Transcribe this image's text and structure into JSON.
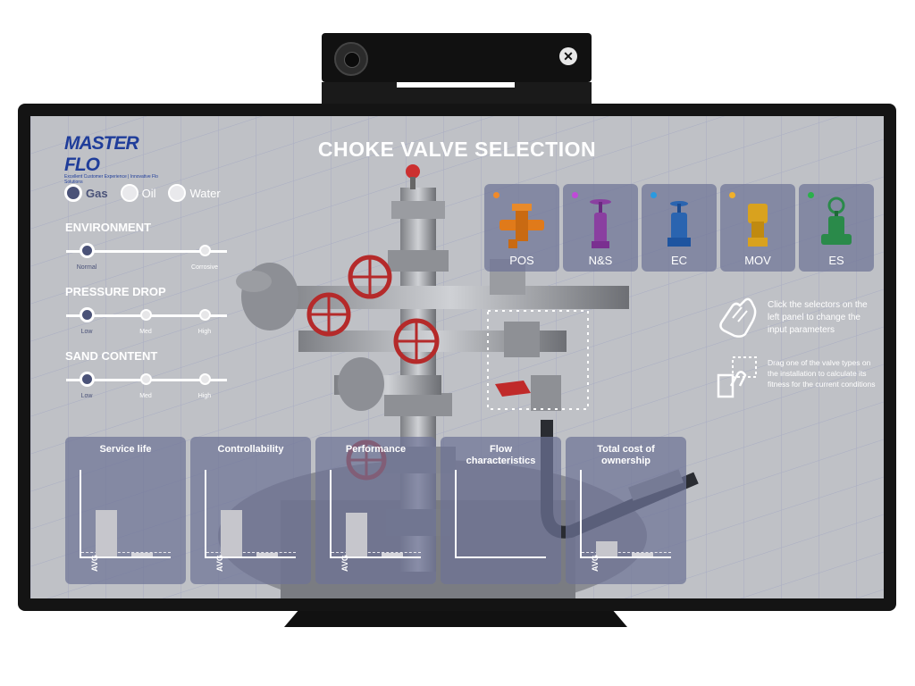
{
  "app": {
    "title": "CHOKE VALVE SELECTION",
    "logo_name": "MASTER FLO",
    "logo_tagline": "Excellent Customer Experience | Innovative Flo Solutions"
  },
  "fluid": {
    "options": [
      {
        "label": "Gas",
        "selected": true
      },
      {
        "label": "Oil",
        "selected": false
      },
      {
        "label": "Water",
        "selected": false
      }
    ]
  },
  "environment": {
    "label": "ENVIRONMENT",
    "ticks": [
      "Normal",
      "Corrosive"
    ],
    "selected": "Normal"
  },
  "pressure_drop": {
    "label": "PRESSURE DROP",
    "ticks": [
      "Low",
      "Med",
      "High"
    ],
    "selected": "Low"
  },
  "sand_content": {
    "label": "SAND CONTENT",
    "ticks": [
      "Low",
      "Med",
      "High"
    ],
    "selected": "Low"
  },
  "valves": [
    {
      "label": "POS",
      "color": "#e07a1a",
      "indicator": "#f08a2a"
    },
    {
      "label": "N&S",
      "color": "#8a3fa0",
      "indicator": "#c04ad8"
    },
    {
      "label": "EC",
      "color": "#2a64b0",
      "indicator": "#2a9ae0"
    },
    {
      "label": "MOV",
      "color": "#d9a21e",
      "indicator": "#f0b02a"
    },
    {
      "label": "ES",
      "color": "#2a8a4a",
      "indicator": "#2ab04a"
    }
  ],
  "help": {
    "click_text": "Click the selectors on the left panel to change the input parameters",
    "drag_text": "Drag one of the valve types on the installation to calculate its fitness for the current conditions"
  },
  "metrics": [
    {
      "title": "Service life",
      "avg_label": "AVG",
      "avg_fraction": 0.55
    },
    {
      "title": "Controllability",
      "avg_label": "AVG",
      "avg_fraction": 0.55
    },
    {
      "title": "Performance",
      "avg_label": "AVG",
      "avg_fraction": 0.52
    },
    {
      "title": "Flow characteristics",
      "avg_label": "",
      "avg_fraction": 0
    },
    {
      "title": "Total cost of ownership",
      "avg_label": "AVG",
      "avg_fraction": 0.18
    }
  ]
}
